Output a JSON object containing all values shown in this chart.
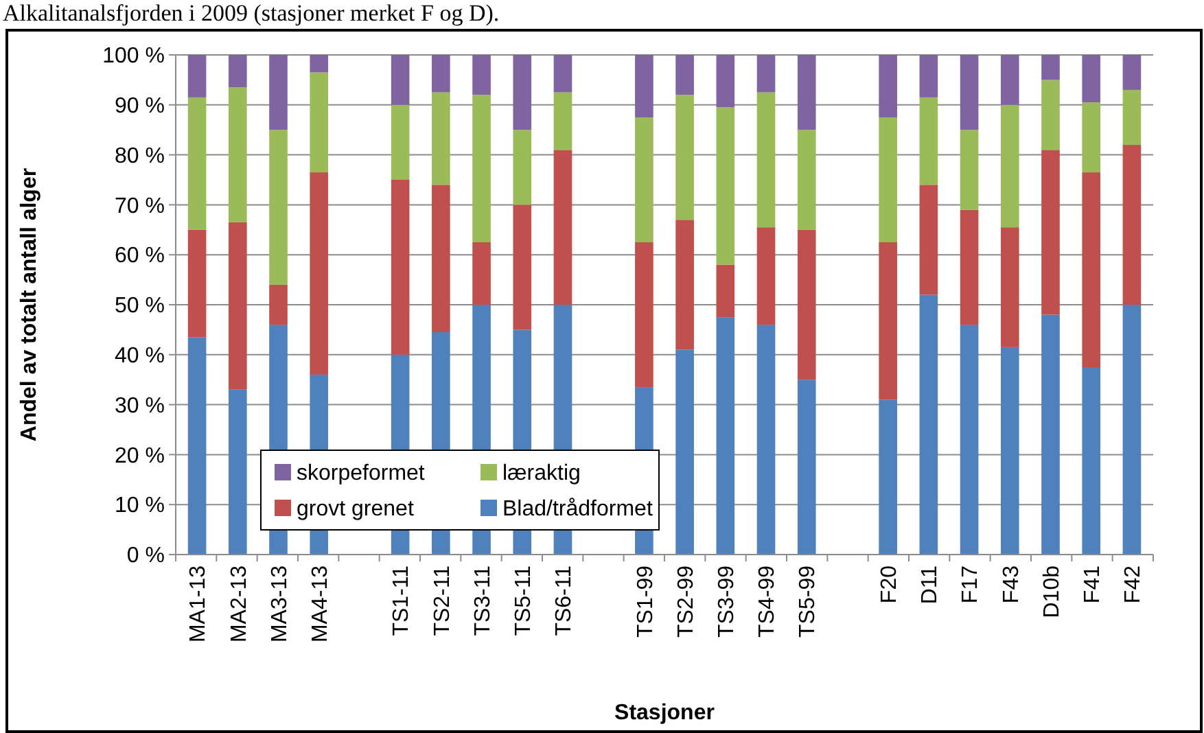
{
  "chart_data": {
    "type": "bar",
    "stacked": true,
    "xlabel": "Stasjoner",
    "ylabel": "Andel av totalt antall alger",
    "annotations": [
      "Alkalitanalsfjorden i 2009 (stasjoner merket F og D)."
    ],
    "categories": [
      "MA1-13",
      "MA2-13",
      "MA3-13",
      "MA4-13",
      null,
      "TS1-11",
      "TS2-11",
      "TS3-11",
      "TS5-11",
      "TS6-11",
      null,
      "TS1-99",
      "TS2-99",
      "TS3-99",
      "TS4-99",
      "TS5-99",
      null,
      "F20",
      "D11",
      "F17",
      "F43",
      "D10b",
      "F41",
      "F42"
    ],
    "series": [
      {
        "name": "Blad/trådformet",
        "color": "#4f81bd",
        "values": [
          43.5,
          33,
          46,
          36,
          null,
          40,
          44.5,
          50,
          45,
          50,
          null,
          33.5,
          41,
          47.5,
          46,
          35,
          null,
          31,
          52,
          46,
          41.5,
          48,
          37.5,
          50
        ]
      },
      {
        "name": "grovt grenet",
        "color": "#c0504d",
        "values": [
          21.5,
          33.5,
          8,
          40.5,
          null,
          35,
          29.5,
          12.5,
          25,
          31,
          null,
          29,
          26,
          10.5,
          19.5,
          30,
          null,
          31.5,
          22,
          23,
          24,
          33,
          39,
          32
        ]
      },
      {
        "name": "læraktig",
        "color": "#9bbb59",
        "values": [
          26.5,
          27,
          31,
          20,
          null,
          15,
          18.5,
          29.5,
          15,
          11.5,
          null,
          25,
          25,
          31.5,
          27,
          20,
          null,
          25,
          17.5,
          16,
          24.5,
          14,
          14,
          11
        ]
      },
      {
        "name": "skorpeformet",
        "color": "#8064a2",
        "values": [
          8.5,
          6.5,
          15,
          3.5,
          null,
          10,
          7.5,
          8,
          15,
          7.5,
          null,
          12.5,
          8,
          10.5,
          7.5,
          15,
          null,
          12.5,
          8.5,
          15,
          10,
          5,
          9.5,
          7
        ]
      }
    ],
    "ylim": [
      0,
      100
    ],
    "yticks": [
      {
        "value": 0,
        "label": "0 %"
      },
      {
        "value": 10,
        "label": "10 %"
      },
      {
        "value": 20,
        "label": "20 %"
      },
      {
        "value": 30,
        "label": "30 %"
      },
      {
        "value": 40,
        "label": "40 %"
      },
      {
        "value": 50,
        "label": "50 %"
      },
      {
        "value": 60,
        "label": "60 %"
      },
      {
        "value": 70,
        "label": "70 %"
      },
      {
        "value": 80,
        "label": "80 %"
      },
      {
        "value": 90,
        "label": "90 %"
      },
      {
        "value": 100,
        "label": "100 %"
      }
    ],
    "grid": "y",
    "legend": "bottom left"
  }
}
